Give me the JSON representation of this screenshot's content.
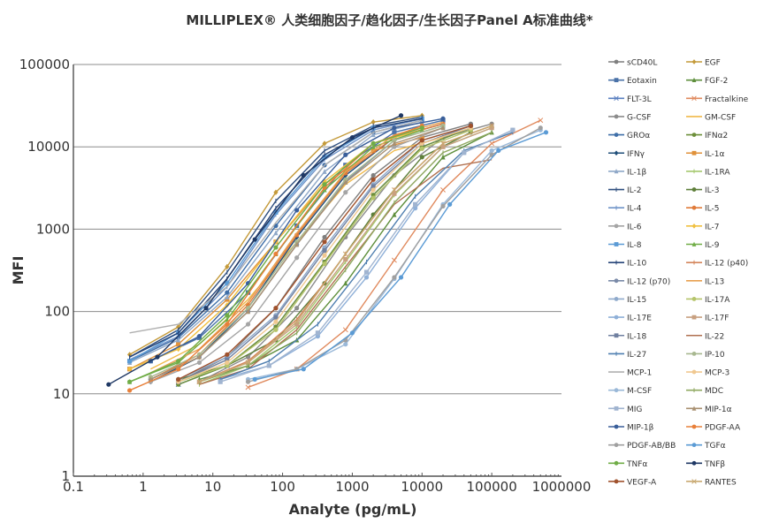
{
  "chart_data": {
    "type": "line",
    "title": "MILLIPLEX® 人类细胞因子/趋化因子/生长因子Panel A标准曲线*",
    "xlabel": "Analyte (pg/mL)",
    "ylabel": "MFI",
    "xscale": "log",
    "yscale": "log",
    "xlim": [
      0.1,
      1000000
    ],
    "ylim": [
      1,
      100000
    ],
    "xticks": [
      "0.1",
      "1",
      "10",
      "100",
      "1000",
      "10000",
      "100000",
      "1000000"
    ],
    "yticks": [
      "1",
      "10",
      "100",
      "1000",
      "10000",
      "100000"
    ],
    "grid": "horizontal",
    "legend_placement": "right",
    "series": [
      {
        "name": "sCD40L",
        "color": "#7f7f7f",
        "marker": "circle",
        "x": [
          3.2,
          16,
          80,
          400,
          2000,
          10000,
          50000
        ],
        "y": [
          14,
          28,
          110,
          800,
          4500,
          13000,
          19000
        ]
      },
      {
        "name": "EGF",
        "color": "#c49a3a",
        "marker": "diamond",
        "x": [
          0.64,
          3.2,
          16,
          80,
          400,
          2000,
          10000
        ],
        "y": [
          30,
          65,
          350,
          2800,
          11000,
          20000,
          24000
        ]
      },
      {
        "name": "Eotaxin",
        "color": "#4a72a8",
        "marker": "square",
        "x": [
          1.28,
          6.4,
          32,
          160,
          800,
          4000,
          20000
        ],
        "y": [
          25,
          48,
          170,
          1100,
          6000,
          15000,
          21000
        ]
      },
      {
        "name": "FGF-2",
        "color": "#5e8f3c",
        "marker": "triangle",
        "x": [
          6.4,
          32,
          160,
          800,
          4000,
          20000,
          100000
        ],
        "y": [
          15,
          22,
          45,
          220,
          1500,
          7500,
          15000
        ]
      },
      {
        "name": "FLT-3L",
        "color": "#5a7fc0",
        "marker": "x",
        "x": [
          3.2,
          16,
          80,
          400,
          2000,
          10000,
          50000
        ],
        "y": [
          13,
          22,
          65,
          400,
          2600,
          10000,
          17000
        ]
      },
      {
        "name": "Fractalkine",
        "color": "#e08a5e",
        "marker": "x",
        "x": [
          32,
          160,
          800,
          4000,
          20000,
          100000,
          500000
        ],
        "y": [
          12,
          20,
          60,
          420,
          3000,
          11000,
          21000
        ]
      },
      {
        "name": "G-CSF",
        "color": "#8c8c8c",
        "marker": "circle",
        "x": [
          6.4,
          32,
          160,
          800,
          4000,
          20000,
          100000
        ],
        "y": [
          14,
          28,
          110,
          800,
          4500,
          13000,
          19000
        ]
      },
      {
        "name": "GM-CSF",
        "color": "#f0b94a",
        "marker": "line",
        "x": [
          1.28,
          6.4,
          32,
          160,
          800,
          4000,
          20000
        ],
        "y": [
          20,
          40,
          140,
          700,
          3500,
          9000,
          13000
        ]
      },
      {
        "name": "GROα",
        "color": "#3f6fa8",
        "marker": "circle",
        "x": [
          0.64,
          3.2,
          16,
          80,
          400,
          2000,
          10000
        ],
        "y": [
          25,
          48,
          170,
          1100,
          6000,
          15000,
          21000
        ]
      },
      {
        "name": "IFNα2",
        "color": "#6d8f3a",
        "marker": "circle",
        "x": [
          3.2,
          16,
          80,
          400,
          2000,
          10000,
          50000
        ],
        "y": [
          13,
          22,
          65,
          400,
          2600,
          10000,
          17000
        ]
      },
      {
        "name": "IFNγ",
        "color": "#1f4e79",
        "marker": "diamond",
        "x": [
          1.28,
          6.4,
          32,
          160,
          800,
          4000,
          20000
        ],
        "y": [
          14,
          28,
          110,
          800,
          4500,
          13000,
          19000
        ]
      },
      {
        "name": "IL-1α",
        "color": "#e0913a",
        "marker": "square",
        "x": [
          0.64,
          3.2,
          16,
          80,
          400,
          2000,
          10000
        ],
        "y": [
          20,
          40,
          140,
          700,
          3500,
          9000,
          13000
        ]
      },
      {
        "name": "IL-1β",
        "color": "#8fa8c8",
        "marker": "triangle",
        "x": [
          0.64,
          3.2,
          16,
          80,
          400,
          2000,
          10000
        ],
        "y": [
          24,
          45,
          150,
          900,
          5000,
          14000,
          20000
        ]
      },
      {
        "name": "IL-1RA",
        "color": "#a5c86e",
        "marker": "plus",
        "x": [
          6.4,
          32,
          160,
          800,
          4000,
          20000,
          100000
        ],
        "y": [
          13,
          22,
          65,
          400,
          2600,
          10000,
          17000
        ]
      },
      {
        "name": "IL-2",
        "color": "#2f4f7f",
        "marker": "plus",
        "x": [
          0.64,
          3.2,
          16,
          80,
          400,
          2000,
          10000
        ],
        "y": [
          28,
          60,
          300,
          2200,
          9000,
          18000,
          23000
        ]
      },
      {
        "name": "IL-3",
        "color": "#5e7f3a",
        "marker": "circle",
        "x": [
          3.2,
          16,
          80,
          400,
          2000,
          10000,
          50000
        ],
        "y": [
          15,
          22,
          45,
          220,
          1500,
          7500,
          15000
        ]
      },
      {
        "name": "IL-4",
        "color": "#6f93c8",
        "marker": "plus",
        "x": [
          0.64,
          3.2,
          16,
          80,
          400,
          2000,
          10000
        ],
        "y": [
          26,
          50,
          200,
          1500,
          7000,
          16000,
          22000
        ]
      },
      {
        "name": "IL-5",
        "color": "#e07b39",
        "marker": "circle",
        "x": [
          1.28,
          6.4,
          32,
          160,
          800,
          4000,
          20000
        ],
        "y": [
          15,
          30,
          120,
          850,
          4800,
          13000,
          19000
        ]
      },
      {
        "name": "IL-6",
        "color": "#a5a5a5",
        "marker": "circle",
        "x": [
          1.28,
          6.4,
          32,
          160,
          800,
          4000,
          20000
        ],
        "y": [
          14,
          24,
          70,
          450,
          2800,
          10000,
          17000
        ]
      },
      {
        "name": "IL-7",
        "color": "#f0c040",
        "marker": "diamond",
        "x": [
          0.64,
          3.2,
          16,
          80,
          400,
          2000,
          10000
        ],
        "y": [
          20,
          35,
          120,
          700,
          3800,
          11000,
          16000
        ]
      },
      {
        "name": "IL-8",
        "color": "#5b9bd5",
        "marker": "square",
        "x": [
          0.64,
          3.2,
          16,
          80,
          400,
          2000,
          10000
        ],
        "y": [
          25,
          55,
          220,
          1600,
          7500,
          17000,
          22000
        ]
      },
      {
        "name": "IL-9",
        "color": "#70ad47",
        "marker": "triangle",
        "x": [
          0.64,
          3.2,
          16,
          80,
          400,
          2000,
          10000
        ],
        "y": [
          14,
          24,
          80,
          500,
          3000,
          10000,
          16000
        ]
      },
      {
        "name": "IL-10",
        "color": "#264478",
        "marker": "plus",
        "x": [
          0.64,
          3.2,
          16,
          80,
          400,
          2000,
          10000
        ],
        "y": [
          28,
          55,
          250,
          1800,
          8000,
          17000,
          22000
        ]
      },
      {
        "name": "IL-12 (p40)",
        "color": "#d4855a",
        "marker": "plus",
        "x": [
          6.4,
          32,
          160,
          800,
          4000,
          20000,
          100000
        ],
        "y": [
          14,
          25,
          80,
          500,
          3000,
          11000,
          18000
        ]
      },
      {
        "name": "IL-12 (p70)",
        "color": "#7a8aa8",
        "marker": "circle",
        "x": [
          1.28,
          6.4,
          32,
          160,
          800,
          4000,
          20000
        ],
        "y": [
          15,
          28,
          100,
          650,
          3800,
          12000,
          18000
        ]
      },
      {
        "name": "IL-13",
        "color": "#e8a050",
        "marker": "line",
        "x": [
          1.28,
          6.4,
          32,
          160,
          800,
          4000,
          20000
        ],
        "y": [
          18,
          35,
          130,
          900,
          5000,
          14000,
          20000
        ]
      },
      {
        "name": "IL-15",
        "color": "#8faacc",
        "marker": "circle",
        "x": [
          3.2,
          16,
          80,
          400,
          2000,
          10000,
          50000
        ],
        "y": [
          15,
          28,
          90,
          600,
          3500,
          12000,
          18000
        ]
      },
      {
        "name": "IL-17A",
        "color": "#b5c46a",
        "marker": "circle",
        "x": [
          3.2,
          16,
          80,
          400,
          2000,
          10000,
          50000
        ],
        "y": [
          14,
          22,
          60,
          380,
          2400,
          9500,
          16000
        ]
      },
      {
        "name": "IL-17E",
        "color": "#8fb0d8",
        "marker": "circle",
        "x": [
          12.8,
          64,
          320,
          1600,
          8000,
          40000,
          200000
        ],
        "y": [
          15,
          22,
          50,
          260,
          1800,
          8500,
          16000
        ]
      },
      {
        "name": "IL-17F",
        "color": "#c8a080",
        "marker": "square",
        "x": [
          6.4,
          32,
          160,
          800,
          4000,
          20000,
          100000
        ],
        "y": [
          14,
          24,
          70,
          430,
          2700,
          10000,
          17000
        ]
      },
      {
        "name": "IL-18",
        "color": "#7080a0",
        "marker": "square",
        "x": [
          3.2,
          16,
          80,
          400,
          2000,
          10000,
          50000
        ],
        "y": [
          14,
          26,
          85,
          550,
          3300,
          11000,
          18000
        ]
      },
      {
        "name": "IL-22",
        "color": "#b07050",
        "marker": "line",
        "x": [
          6.4,
          32,
          160,
          800,
          4000,
          20000,
          100000
        ],
        "y": [
          13,
          20,
          60,
          350,
          2000,
          5500,
          7000
        ]
      },
      {
        "name": "IL-27",
        "color": "#4f7fb0",
        "marker": "plus",
        "x": [
          12.8,
          64,
          320,
          1600,
          8000,
          40000,
          200000
        ],
        "y": [
          15,
          25,
          70,
          400,
          2500,
          9000,
          15000
        ]
      },
      {
        "name": "IP-10",
        "color": "#a8b890",
        "marker": "circle",
        "x": [
          1.28,
          6.4,
          32,
          160,
          800,
          4000,
          20000
        ],
        "y": [
          16,
          30,
          110,
          700,
          4000,
          12000,
          18000
        ]
      },
      {
        "name": "MCP-1",
        "color": "#b0b0b0",
        "marker": "line",
        "x": [
          0.64,
          3.2,
          16,
          80,
          400,
          2000,
          10000
        ],
        "y": [
          55,
          70,
          200,
          1200,
          6000,
          15000,
          21000
        ]
      },
      {
        "name": "MCP-3",
        "color": "#f0c890",
        "marker": "circle",
        "x": [
          3.2,
          16,
          80,
          400,
          2000,
          10000,
          50000
        ],
        "y": [
          14,
          24,
          75,
          480,
          3000,
          11000,
          17000
        ]
      },
      {
        "name": "M-CSF",
        "color": "#9ab8d8",
        "marker": "circle",
        "x": [
          32,
          160,
          800,
          4000,
          20000,
          100000,
          500000
        ],
        "y": [
          15,
          20,
          40,
          250,
          2000,
          9000,
          16000
        ]
      },
      {
        "name": "MDC",
        "color": "#8fa860",
        "marker": "plus",
        "x": [
          6.4,
          32,
          160,
          800,
          4000,
          20000,
          100000
        ],
        "y": [
          14,
          22,
          55,
          320,
          2100,
          8500,
          15000
        ]
      },
      {
        "name": "MIG",
        "color": "#a0b4d0",
        "marker": "square",
        "x": [
          12.8,
          64,
          320,
          1600,
          8000,
          40000,
          200000
        ],
        "y": [
          14,
          22,
          55,
          300,
          2000,
          8500,
          16000
        ]
      },
      {
        "name": "MIP-1α",
        "color": "#a89070",
        "marker": "triangle",
        "x": [
          1.28,
          6.4,
          32,
          160,
          800,
          4000,
          20000
        ],
        "y": [
          15,
          28,
          100,
          650,
          3700,
          11000,
          17000
        ]
      },
      {
        "name": "MIP-1β",
        "color": "#3a5f9a",
        "marker": "circle",
        "x": [
          1.28,
          6.4,
          32,
          160,
          800,
          4000,
          20000
        ],
        "y": [
          25,
          50,
          220,
          1700,
          8000,
          17000,
          22000
        ]
      },
      {
        "name": "PDGF-AA",
        "color": "#e8803a",
        "marker": "circle",
        "x": [
          0.64,
          3.2,
          16,
          80,
          400,
          2000,
          10000
        ],
        "y": [
          11,
          20,
          70,
          500,
          3200,
          11000,
          18000
        ]
      },
      {
        "name": "PDGF-AB/BB",
        "color": "#a0a0a0",
        "marker": "circle",
        "x": [
          32,
          160,
          800,
          4000,
          20000,
          100000,
          500000
        ],
        "y": [
          14,
          20,
          45,
          260,
          1900,
          8000,
          17000
        ]
      },
      {
        "name": "TGFα",
        "color": "#5b9bd5",
        "marker": "circle",
        "x": [
          40,
          200,
          1000,
          5000,
          25000,
          125000,
          600000
        ],
        "y": [
          15,
          20,
          55,
          260,
          2000,
          9000,
          15000
        ]
      },
      {
        "name": "TNFα",
        "color": "#70ad47",
        "marker": "circle",
        "x": [
          0.64,
          3.2,
          16,
          80,
          400,
          2000,
          10000
        ],
        "y": [
          14,
          25,
          90,
          600,
          3500,
          11000,
          17000
        ]
      },
      {
        "name": "TNFβ",
        "color": "#1f3864",
        "marker": "circle",
        "x": [
          0.32,
          1.6,
          8,
          40,
          200,
          1000,
          5000
        ],
        "y": [
          13,
          28,
          110,
          750,
          4500,
          13000,
          24000
        ]
      },
      {
        "name": "VEGF-A",
        "color": "#a0522d",
        "marker": "circle",
        "x": [
          3.2,
          16,
          80,
          400,
          2000,
          10000,
          50000
        ],
        "y": [
          15,
          30,
          110,
          700,
          4000,
          12000,
          18000
        ]
      },
      {
        "name": "RANTES",
        "color": "#c8a870",
        "marker": "x",
        "x": [
          6.4,
          32,
          160,
          800,
          4000,
          20000,
          100000
        ],
        "y": [
          14,
          24,
          75,
          500,
          3000,
          11000,
          18000
        ]
      }
    ]
  }
}
